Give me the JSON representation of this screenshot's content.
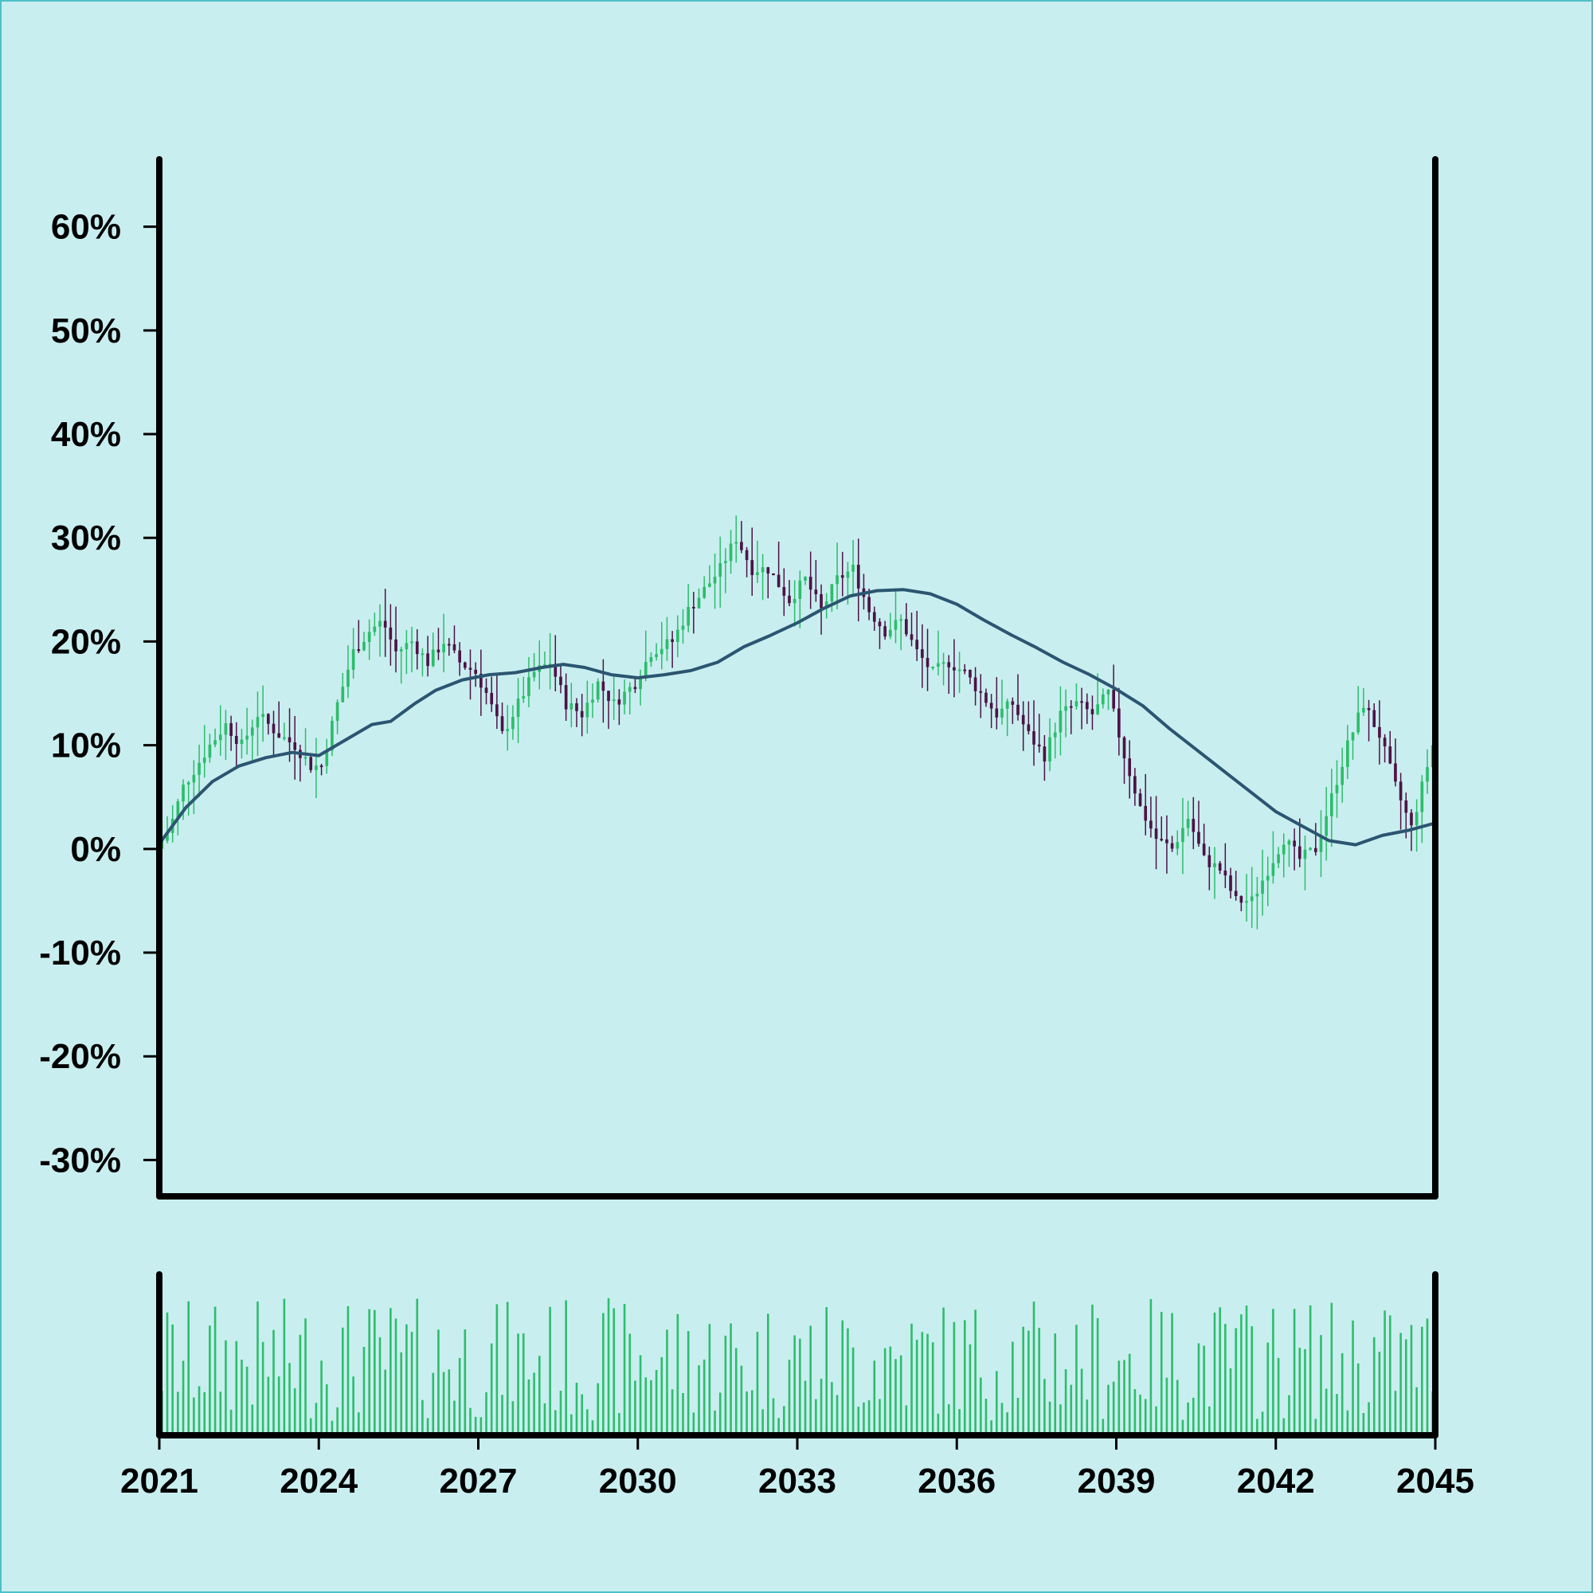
{
  "colors": {
    "background": "#c9eef0",
    "up_candle": "#2dbd6b",
    "down_candle": "#4d1346",
    "moving_average": "#2b5570",
    "volume": "#2dbd6b",
    "axis": "#000000"
  },
  "chart_data": {
    "type": "candlestick",
    "panels": [
      "price",
      "volume"
    ],
    "x_range": [
      2021,
      2045
    ],
    "x_ticks": [
      "2021",
      "2024",
      "2027",
      "2030",
      "2033",
      "2036",
      "2039",
      "2042",
      "2045"
    ],
    "y_range": [
      -33.5,
      66.5
    ],
    "y_ticks": [
      "60%",
      "50%",
      "40%",
      "30%",
      "20%",
      "10%",
      "0%",
      "-10%",
      "-20%",
      "-30%"
    ],
    "y_tick_values": [
      60,
      50,
      40,
      30,
      20,
      10,
      0,
      -10,
      -20,
      -30
    ],
    "grid": false,
    "legend": "none",
    "close_path": [
      [
        2021.0,
        0
      ],
      [
        2021.25,
        2
      ],
      [
        2021.5,
        6
      ],
      [
        2021.75,
        8
      ],
      [
        2022.0,
        10
      ],
      [
        2022.3,
        12
      ],
      [
        2022.6,
        10
      ],
      [
        2022.9,
        13
      ],
      [
        2023.3,
        11
      ],
      [
        2023.6,
        10
      ],
      [
        2023.9,
        8
      ],
      [
        2024.1,
        8
      ],
      [
        2024.4,
        14
      ],
      [
        2024.7,
        19
      ],
      [
        2025.0,
        21
      ],
      [
        2025.25,
        22
      ],
      [
        2025.5,
        19
      ],
      [
        2025.8,
        20
      ],
      [
        2026.1,
        18
      ],
      [
        2026.4,
        20
      ],
      [
        2026.7,
        18
      ],
      [
        2027.0,
        17
      ],
      [
        2027.2,
        15
      ],
      [
        2027.5,
        11
      ],
      [
        2027.8,
        14
      ],
      [
        2028.1,
        17
      ],
      [
        2028.4,
        18
      ],
      [
        2028.7,
        14
      ],
      [
        2029.0,
        13
      ],
      [
        2029.3,
        16
      ],
      [
        2029.6,
        14
      ],
      [
        2030.0,
        16
      ],
      [
        2030.3,
        19
      ],
      [
        2030.7,
        20
      ],
      [
        2031.0,
        23
      ],
      [
        2031.3,
        25
      ],
      [
        2031.6,
        27
      ],
      [
        2031.9,
        30
      ],
      [
        2032.2,
        27
      ],
      [
        2032.5,
        27
      ],
      [
        2032.9,
        24
      ],
      [
        2033.2,
        26
      ],
      [
        2033.5,
        23
      ],
      [
        2033.8,
        26
      ],
      [
        2034.1,
        27
      ],
      [
        2034.4,
        23
      ],
      [
        2034.7,
        21
      ],
      [
        2035.0,
        22
      ],
      [
        2035.3,
        19
      ],
      [
        2035.6,
        17
      ],
      [
        2035.9,
        18
      ],
      [
        2036.2,
        17
      ],
      [
        2036.5,
        15
      ],
      [
        2036.8,
        13
      ],
      [
        2037.1,
        14
      ],
      [
        2037.4,
        11
      ],
      [
        2037.7,
        9
      ],
      [
        2038.0,
        13
      ],
      [
        2038.3,
        14
      ],
      [
        2038.6,
        13
      ],
      [
        2038.9,
        15
      ],
      [
        2039.2,
        9
      ],
      [
        2039.5,
        4
      ],
      [
        2039.8,
        1
      ],
      [
        2040.1,
        0
      ],
      [
        2040.4,
        3
      ],
      [
        2040.7,
        -1
      ],
      [
        2041.0,
        -2
      ],
      [
        2041.3,
        -5
      ],
      [
        2041.6,
        -5
      ],
      [
        2041.9,
        -2
      ],
      [
        2042.2,
        1
      ],
      [
        2042.5,
        -1
      ],
      [
        2042.8,
        0
      ],
      [
        2043.1,
        5
      ],
      [
        2043.4,
        10
      ],
      [
        2043.7,
        14
      ],
      [
        2044.0,
        11
      ],
      [
        2044.3,
        6
      ],
      [
        2044.6,
        2
      ],
      [
        2044.8,
        6
      ],
      [
        2045.0,
        10
      ]
    ],
    "moving_average": [
      [
        2021.0,
        0.5
      ],
      [
        2021.5,
        4
      ],
      [
        2022.0,
        6.5
      ],
      [
        2022.5,
        8
      ],
      [
        2023.0,
        8.8
      ],
      [
        2023.5,
        9.3
      ],
      [
        2024.0,
        9
      ],
      [
        2024.5,
        10.5
      ],
      [
        2025.0,
        12
      ],
      [
        2025.35,
        12.3
      ],
      [
        2025.8,
        14
      ],
      [
        2026.2,
        15.3
      ],
      [
        2026.7,
        16.3
      ],
      [
        2027.2,
        16.8
      ],
      [
        2027.7,
        17
      ],
      [
        2028.2,
        17.5
      ],
      [
        2028.6,
        17.8
      ],
      [
        2029.0,
        17.5
      ],
      [
        2029.5,
        16.8
      ],
      [
        2030.0,
        16.5
      ],
      [
        2030.5,
        16.8
      ],
      [
        2031.0,
        17.2
      ],
      [
        2031.5,
        18
      ],
      [
        2032.0,
        19.5
      ],
      [
        2032.5,
        20.6
      ],
      [
        2033.0,
        21.8
      ],
      [
        2033.5,
        23.2
      ],
      [
        2034.0,
        24.4
      ],
      [
        2034.5,
        24.9
      ],
      [
        2035.0,
        25
      ],
      [
        2035.5,
        24.6
      ],
      [
        2036.0,
        23.6
      ],
      [
        2036.5,
        22.1
      ],
      [
        2037.0,
        20.7
      ],
      [
        2037.5,
        19.4
      ],
      [
        2038.0,
        18
      ],
      [
        2038.5,
        16.8
      ],
      [
        2039.0,
        15.4
      ],
      [
        2039.5,
        13.8
      ],
      [
        2040.0,
        11.6
      ],
      [
        2040.5,
        9.6
      ],
      [
        2041.0,
        7.6
      ],
      [
        2041.5,
        5.6
      ],
      [
        2042.0,
        3.6
      ],
      [
        2042.5,
        2.2
      ],
      [
        2043.0,
        0.8
      ],
      [
        2043.5,
        0.4
      ],
      [
        2044.0,
        1.3
      ],
      [
        2044.5,
        1.8
      ],
      [
        2045.0,
        2.5
      ]
    ],
    "candle_count": 240,
    "volume_scale": [
      0,
      1
    ]
  }
}
